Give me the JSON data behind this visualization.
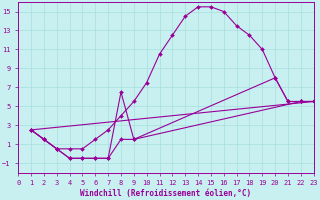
{
  "xlabel": "Windchill (Refroidissement éolien,°C)",
  "bg_color": "#c8f0f0",
  "line_color": "#990099",
  "grid_color": "#a8dede",
  "xlim": [
    0,
    23
  ],
  "ylim": [
    -2,
    16
  ],
  "xticks": [
    0,
    1,
    2,
    3,
    4,
    5,
    6,
    7,
    8,
    9,
    10,
    11,
    12,
    13,
    14,
    15,
    16,
    17,
    18,
    19,
    20,
    21,
    22,
    23
  ],
  "yticks": [
    -1,
    1,
    3,
    5,
    7,
    9,
    11,
    13,
    15
  ],
  "line1_x": [
    1,
    2,
    3,
    4,
    5,
    6,
    7,
    8,
    9,
    10,
    11,
    12,
    13,
    14,
    15,
    16,
    17,
    18,
    19,
    20,
    21,
    22,
    23
  ],
  "line1_y": [
    2.5,
    1.5,
    0.5,
    0.5,
    0.5,
    1.5,
    2.5,
    4.0,
    5.5,
    7.5,
    10.5,
    12.5,
    14.5,
    15.5,
    15.5,
    15.0,
    13.5,
    12.5,
    11.0,
    8.0,
    5.5,
    5.5,
    5.5
  ],
  "line2_x": [
    1,
    2,
    3,
    4,
    5,
    6,
    7,
    8,
    9,
    20,
    21,
    22,
    23
  ],
  "line2_y": [
    2.5,
    1.5,
    0.5,
    -0.5,
    -0.5,
    -0.5,
    -0.5,
    6.5,
    1.5,
    8.0,
    5.5,
    5.5,
    5.5
  ],
  "line3_x": [
    1,
    2,
    3,
    4,
    5,
    6,
    7,
    8,
    9,
    22,
    23
  ],
  "line3_y": [
    2.5,
    1.5,
    0.5,
    -0.5,
    -0.5,
    -0.5,
    -0.5,
    1.5,
    1.5,
    5.5,
    5.5
  ],
  "line4_x": [
    1,
    23
  ],
  "line4_y": [
    2.5,
    5.5
  ]
}
